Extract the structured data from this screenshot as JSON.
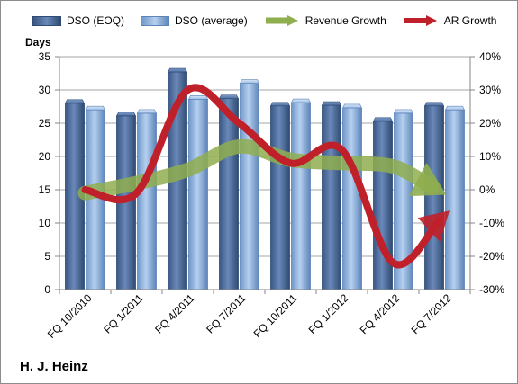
{
  "company_label": "H. J. Heinz",
  "chart_data": {
    "type": "bar",
    "categories": [
      "FQ 10/2010",
      "FQ 1/2011",
      "FQ 4/2011",
      "FQ 7/2011",
      "FQ 10/2011",
      "FQ 1/2012",
      "FQ 4/2012",
      "FQ 7/2012"
    ],
    "ylabel": "Days",
    "ylim": [
      0,
      35
    ],
    "y_ticks": [
      "0",
      "5",
      "10",
      "15",
      "20",
      "25",
      "30",
      "35"
    ],
    "y2lim": [
      -30,
      40
    ],
    "y2_ticks": [
      "-30%",
      "-20%",
      "-10%",
      "0%",
      "10%",
      "20%",
      "30%",
      "40%"
    ],
    "grid": true,
    "legend_position": "top",
    "series": [
      {
        "name": "DSO (EOQ)",
        "type": "bar",
        "axis": "left",
        "color": "#4f6fa0",
        "values": [
          28.0,
          26.1,
          32.7,
          28.7,
          27.6,
          27.7,
          25.3,
          27.6
        ]
      },
      {
        "name": "DSO (average)",
        "type": "bar",
        "axis": "left",
        "color": "#8db3e2",
        "values": [
          27.0,
          26.5,
          28.6,
          31.0,
          28.1,
          27.3,
          26.5,
          27.0
        ]
      },
      {
        "name": "Revenue Growth",
        "type": "line",
        "axis": "right",
        "unit": "%",
        "color": "#77933c",
        "values": [
          -1,
          2,
          6,
          13,
          9,
          8,
          7,
          0
        ]
      },
      {
        "name": "AR Growth",
        "type": "line",
        "axis": "right",
        "unit": "%",
        "color": "#c0202a",
        "values": [
          0,
          -1,
          30,
          20,
          8,
          12,
          -22,
          -7
        ]
      }
    ]
  }
}
